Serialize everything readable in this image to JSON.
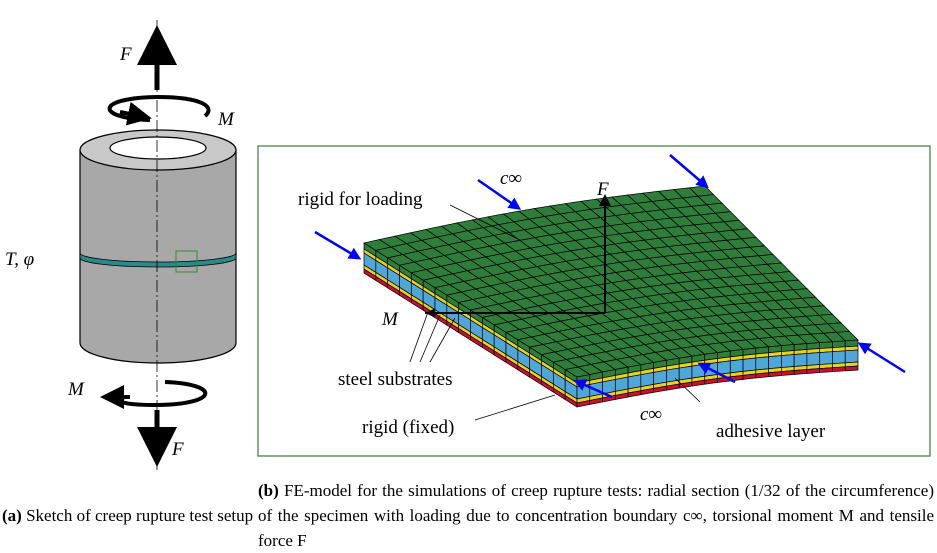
{
  "sketch": {
    "force_top": "F",
    "moment_top": "M",
    "temperature": "T, φ",
    "moment_bottom": "M",
    "force_bottom": "F"
  },
  "model": {
    "rigid_loading": "rigid for loading",
    "concentration_top": "c∞",
    "force": "F",
    "moment": "M",
    "steel": "steel substrates",
    "rigid_fixed": "rigid (fixed)",
    "concentration_bottom": "c∞",
    "adhesive": "adhesive layer"
  },
  "caption_a": {
    "label": "(a)",
    "text": "Sketch of creep rupture test setup"
  },
  "caption_b": {
    "label": "(b)",
    "text": "FE-model for the simulations of creep rupture tests: radial section (1/32 of the circumference) of the specimen with loading due to concentration boundary c∞, torsional moment M and tensile force F"
  }
}
